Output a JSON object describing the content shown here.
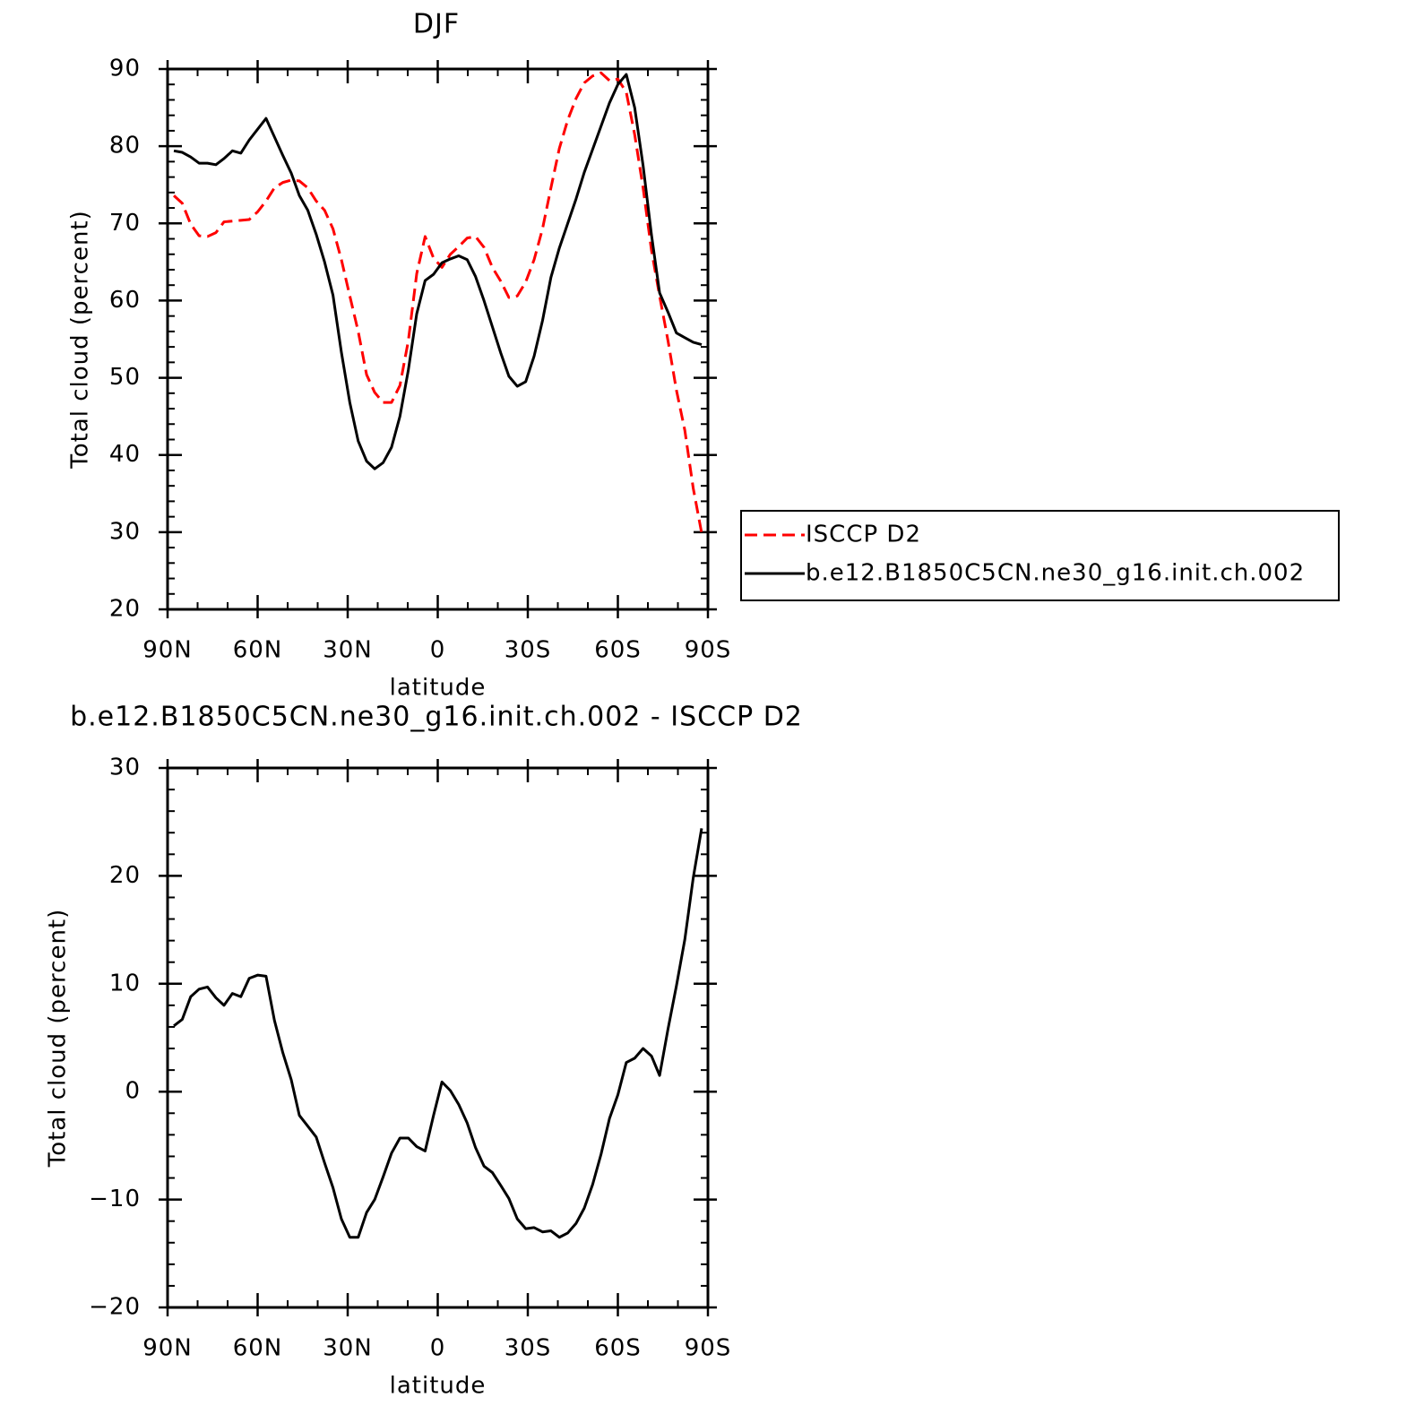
{
  "chart_data": [
    {
      "type": "line",
      "title": "DJF",
      "xlabel": "latitude",
      "ylabel": "Total cloud (percent)",
      "x": [
        87.9,
        85.1,
        82.3,
        79.5,
        76.7,
        73.9,
        71.2,
        68.4,
        65.6,
        62.8,
        60.0,
        57.2,
        54.4,
        51.6,
        48.8,
        46.1,
        43.3,
        40.5,
        37.7,
        34.9,
        32.1,
        29.3,
        26.5,
        23.7,
        21.0,
        18.2,
        15.4,
        12.6,
        9.8,
        7.0,
        4.2,
        1.4,
        -1.4,
        -4.2,
        -7.0,
        -9.8,
        -12.6,
        -15.4,
        -18.2,
        -21.0,
        -23.7,
        -26.5,
        -29.3,
        -32.1,
        -34.9,
        -37.7,
        -40.5,
        -43.3,
        -46.1,
        -48.8,
        -51.6,
        -54.4,
        -57.2,
        -60.0,
        -62.8,
        -65.6,
        -68.4,
        -71.2,
        -73.9,
        -76.7,
        -79.5,
        -82.3,
        -85.1,
        -87.9
      ],
      "xlim": [
        90,
        -90
      ],
      "xticks": [
        {
          "value": 90,
          "label": "90N"
        },
        {
          "value": 60,
          "label": "60N"
        },
        {
          "value": 30,
          "label": "30N"
        },
        0,
        {
          "value": -30,
          "label": "30S"
        },
        {
          "value": -60,
          "label": "60S"
        },
        {
          "value": -90,
          "label": "90S"
        }
      ],
      "ylim": [
        20,
        90
      ],
      "yticks": [
        20,
        30,
        40,
        50,
        60,
        70,
        80,
        90
      ],
      "legend": "right",
      "series": [
        {
          "name": "ISCCP D2",
          "color": "#ff0000",
          "dashed": true,
          "values": [
            73.6,
            72.6,
            69.9,
            68.4,
            68.3,
            68.8,
            70.2,
            70.3,
            70.4,
            70.5,
            71.5,
            72.9,
            74.6,
            75.3,
            75.6,
            75.5,
            74.6,
            72.9,
            71.7,
            69.3,
            65.3,
            60.6,
            56.0,
            50.4,
            48.1,
            46.8,
            46.8,
            49.0,
            54.8,
            63.5,
            68.3,
            65.5,
            64.3,
            66.0,
            67.0,
            68.1,
            68.3,
            66.9,
            64.3,
            62.5,
            60.4,
            60.6,
            62.4,
            65.3,
            69.3,
            74.6,
            79.7,
            83.4,
            86.2,
            88.2,
            89.1,
            89.5,
            88.5,
            88.7,
            87.0,
            81.5,
            74.6,
            66.5,
            60.6,
            54.8,
            48.4,
            43.2,
            35.7,
            29.9
          ]
        },
        {
          "name": "b.e12.B1850C5CN.ne30_g16.init.ch.002",
          "color": "#000000",
          "dashed": false,
          "values": [
            79.4,
            79.2,
            78.6,
            77.8,
            77.8,
            77.6,
            78.4,
            79.4,
            79.1,
            80.8,
            82.2,
            83.6,
            81.2,
            78.8,
            76.5,
            73.6,
            71.7,
            68.6,
            65.0,
            60.7,
            53.3,
            46.8,
            41.8,
            39.2,
            38.2,
            39.0,
            41.0,
            45.0,
            51.0,
            58.3,
            62.6,
            63.4,
            64.9,
            65.4,
            65.8,
            65.3,
            63.1,
            60.0,
            56.6,
            53.2,
            50.2,
            48.9,
            49.5,
            52.8,
            57.4,
            63.0,
            66.8,
            70.0,
            73.2,
            76.6,
            79.6,
            82.6,
            85.6,
            88.0,
            89.3,
            85.0,
            77.5,
            68.5,
            61.0,
            58.5,
            55.8,
            55.2,
            54.6,
            54.3
          ]
        }
      ]
    },
    {
      "type": "line",
      "title": "b.e12.B1850C5CN.ne30_g16.init.ch.002 - ISCCP D2",
      "xlabel": "latitude",
      "ylabel": "Total cloud (percent)",
      "x": [
        87.9,
        85.1,
        82.3,
        79.5,
        76.7,
        73.9,
        71.2,
        68.4,
        65.6,
        62.8,
        60.0,
        57.2,
        54.4,
        51.6,
        48.8,
        46.1,
        43.3,
        40.5,
        37.7,
        34.9,
        32.1,
        29.3,
        26.5,
        23.7,
        21.0,
        18.2,
        15.4,
        12.6,
        9.8,
        7.0,
        4.2,
        1.4,
        -1.4,
        -4.2,
        -7.0,
        -9.8,
        -12.6,
        -15.4,
        -18.2,
        -21.0,
        -23.7,
        -26.5,
        -29.3,
        -32.1,
        -34.9,
        -37.7,
        -40.5,
        -43.3,
        -46.1,
        -48.8,
        -51.6,
        -54.4,
        -57.2,
        -60.0,
        -62.8,
        -65.6,
        -68.4,
        -71.2,
        -73.9,
        -76.7,
        -79.5,
        -82.3,
        -85.1,
        -87.9
      ],
      "xlim": [
        90,
        -90
      ],
      "xticks": [
        {
          "value": 90,
          "label": "90N"
        },
        {
          "value": 60,
          "label": "60N"
        },
        {
          "value": 30,
          "label": "30N"
        },
        0,
        {
          "value": -30,
          "label": "30S"
        },
        {
          "value": -60,
          "label": "60S"
        },
        {
          "value": -90,
          "label": "90S"
        }
      ],
      "ylim": [
        -20,
        30
      ],
      "yticks": [
        {
          "value": -20,
          "label": "−20"
        },
        {
          "value": -10,
          "label": "−10"
        },
        0,
        10,
        20,
        30
      ],
      "series": [
        {
          "color": "#000000",
          "dashed": false,
          "values": [
            6.1,
            6.7,
            8.8,
            9.5,
            9.7,
            8.7,
            8.0,
            9.1,
            8.8,
            10.5,
            10.8,
            10.7,
            6.6,
            3.6,
            1.1,
            -2.2,
            -3.2,
            -4.2,
            -6.6,
            -8.9,
            -11.8,
            -13.5,
            -13.5,
            -11.2,
            -10.0,
            -7.9,
            -5.7,
            -4.3,
            -4.3,
            -5.1,
            -5.5,
            -2.2,
            0.9,
            0.1,
            -1.2,
            -2.9,
            -5.2,
            -6.9,
            -7.5,
            -8.7,
            -9.9,
            -11.8,
            -12.7,
            -12.6,
            -13.0,
            -12.9,
            -13.5,
            -13.1,
            -12.2,
            -10.8,
            -8.6,
            -5.8,
            -2.5,
            -0.3,
            2.7,
            3.1,
            4.0,
            3.3,
            1.5,
            5.8,
            9.8,
            14.1,
            19.8,
            24.4
          ]
        }
      ]
    }
  ]
}
